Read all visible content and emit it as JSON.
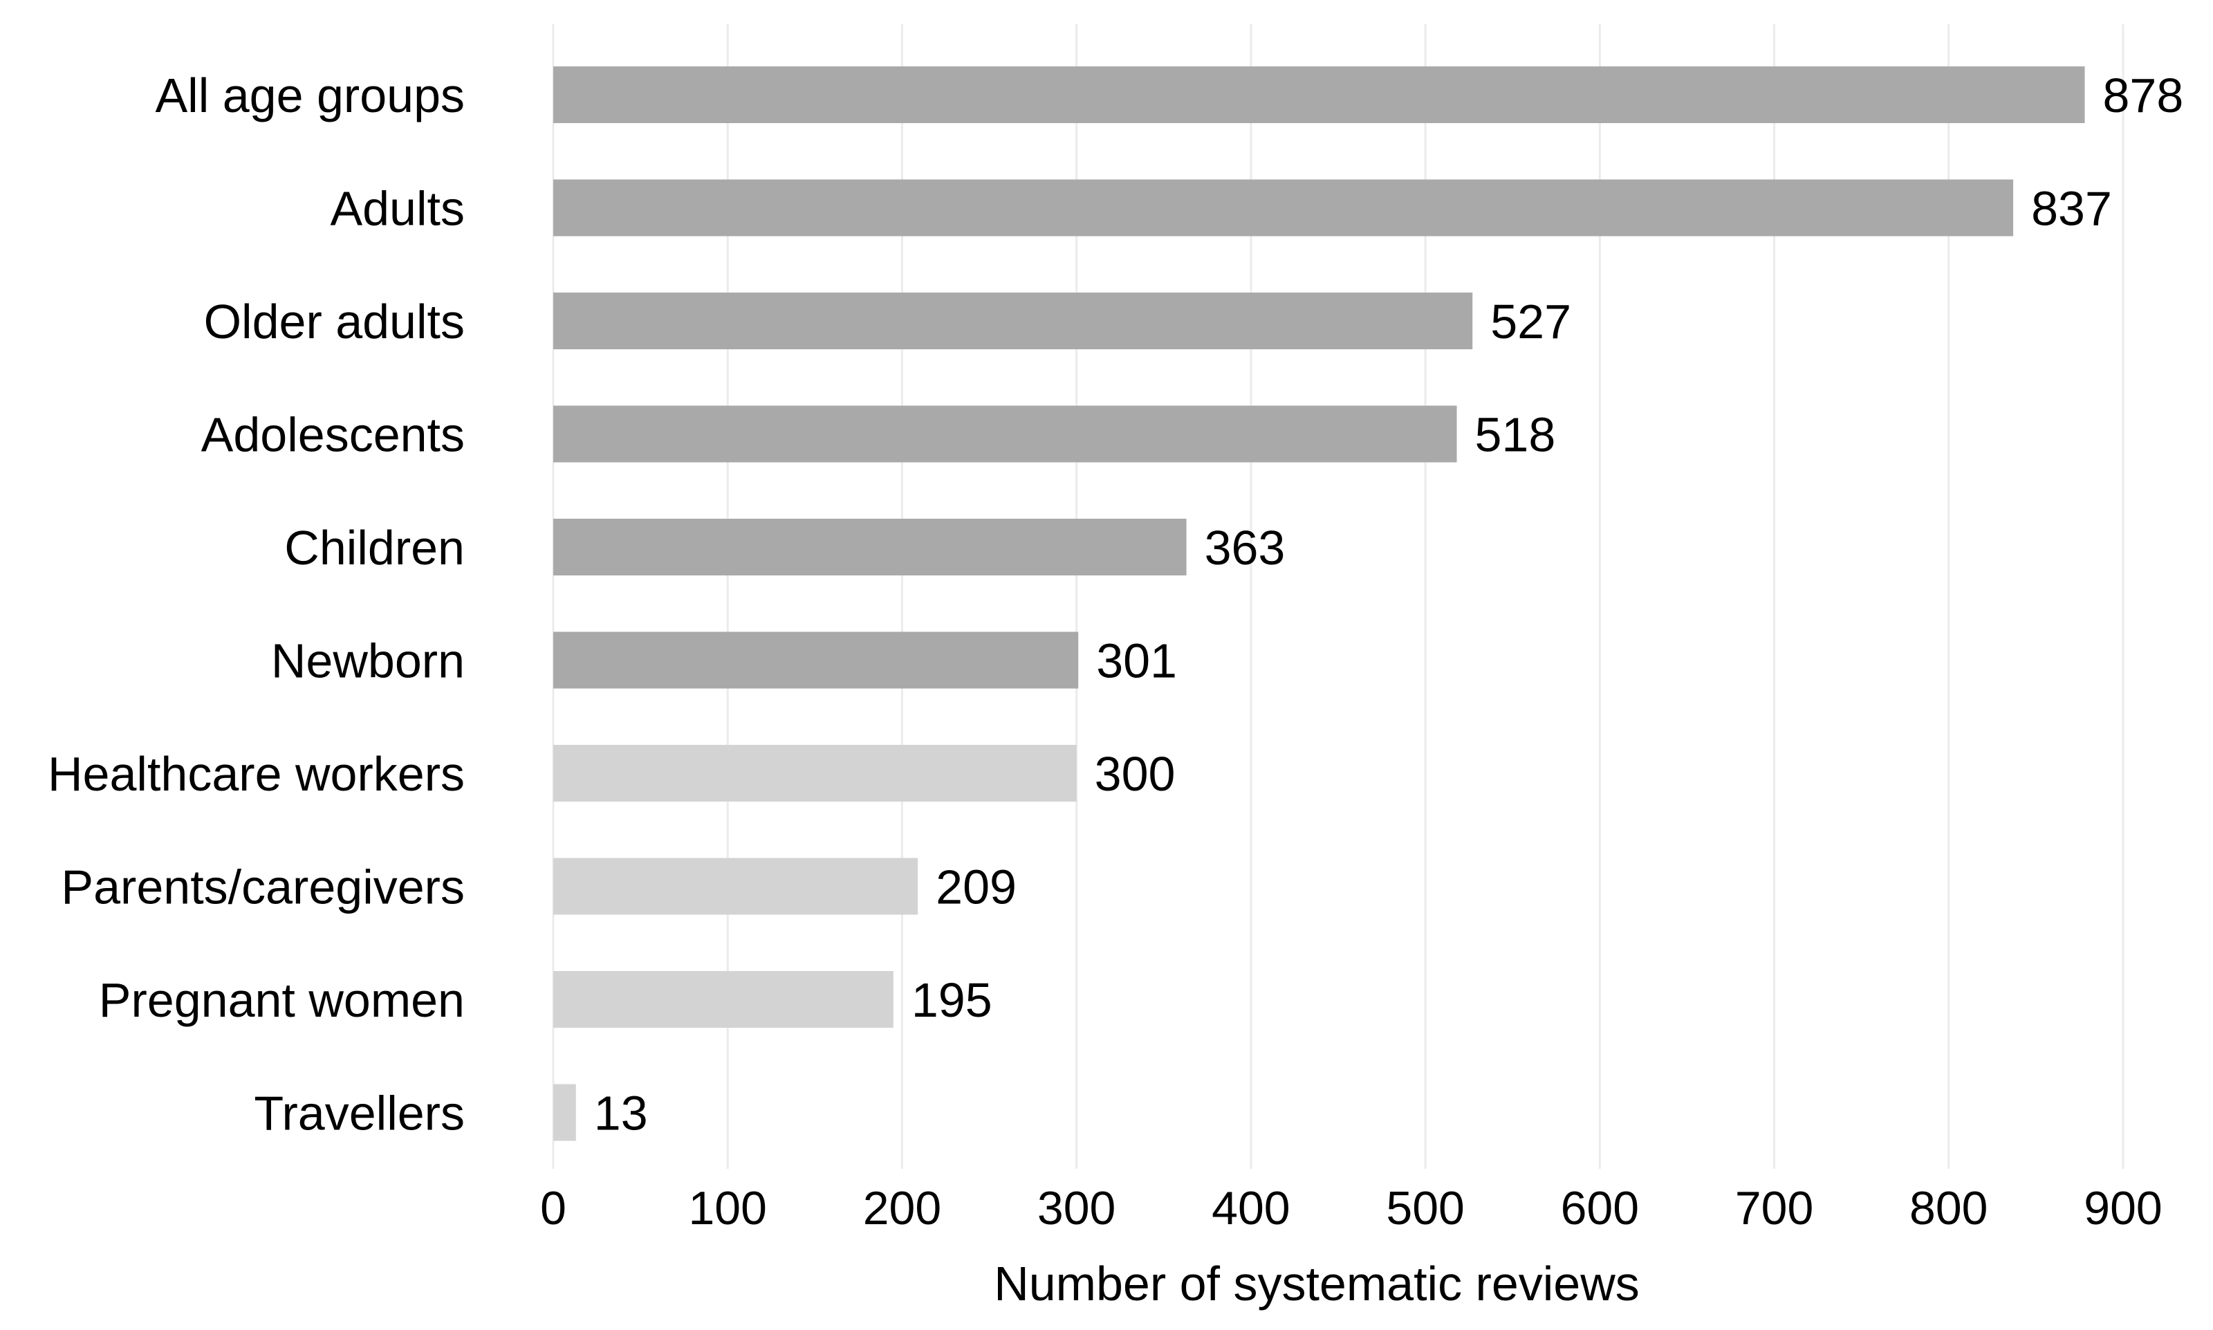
{
  "chart_data": {
    "type": "bar",
    "orientation": "horizontal",
    "categories": [
      "All age groups",
      "Adults",
      "Older adults",
      "Adolescents",
      "Children",
      "Newborn",
      "Healthcare workers",
      "Parents/caregivers",
      "Pregnant women",
      "Travellers"
    ],
    "values": [
      878,
      837,
      527,
      518,
      363,
      301,
      300,
      209,
      195,
      13
    ],
    "bar_colors": [
      "#a9a9a9",
      "#a9a9a9",
      "#a9a9a9",
      "#a9a9a9",
      "#a9a9a9",
      "#a9a9a9",
      "#d3d3d3",
      "#d3d3d3",
      "#d3d3d3",
      "#d3d3d3"
    ],
    "title": "",
    "xlabel": "Number of systematic reviews",
    "ylabel": "",
    "xlim": [
      0,
      900
    ],
    "xticks": [
      0,
      100,
      200,
      300,
      400,
      500,
      600,
      700,
      800,
      900
    ],
    "xtick_labels": [
      "0",
      "100",
      "200",
      "300",
      "400",
      "500",
      "600",
      "700",
      "800",
      "900"
    ],
    "grid": "vertical",
    "grid_color": "#ebebeb",
    "data_labels": true,
    "legend": "none"
  }
}
